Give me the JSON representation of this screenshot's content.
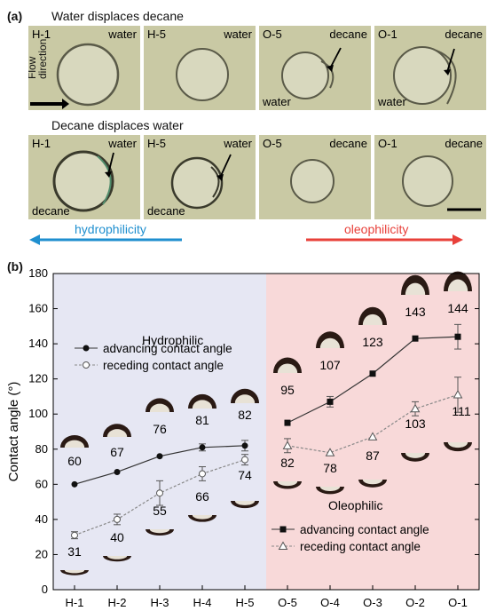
{
  "panel_a": {
    "label": "(a)",
    "row1_title": "Water displaces decane",
    "row2_title": "Decane displaces water",
    "flow_label": "Flow direction",
    "row1": [
      {
        "id": "H-1",
        "fluid": "water"
      },
      {
        "id": "H-5",
        "fluid": "water"
      },
      {
        "id": "O-5",
        "fluid": "decane",
        "fluid2": "water"
      },
      {
        "id": "O-1",
        "fluid": "decane",
        "fluid2": "water"
      }
    ],
    "row2": [
      {
        "id": "H-1",
        "fluid": "water",
        "fluid2": "decane"
      },
      {
        "id": "H-5",
        "fluid": "water",
        "fluid2": "decane"
      },
      {
        "id": "O-5",
        "fluid": "decane"
      },
      {
        "id": "O-1",
        "fluid": "decane"
      }
    ],
    "hydrophilicity_label": "hydrophilicity",
    "oleophilicity_label": "oleophilicity",
    "hydro_color": "#1f8fcf",
    "oleo_color": "#e8403a"
  },
  "panel_b_label": "(b)",
  "chart_data": {
    "type": "line",
    "categories": [
      "H-1",
      "H-2",
      "H-3",
      "H-4",
      "H-5",
      "O-5",
      "O-4",
      "O-3",
      "O-2",
      "O-1"
    ],
    "ylabel": "Contact angle (°)",
    "ylim": [
      0,
      180
    ],
    "yticks": [
      0,
      20,
      40,
      60,
      80,
      100,
      120,
      140,
      160,
      180
    ],
    "region_labels": {
      "left": "Hydrophilic",
      "right": "Oleophilic"
    },
    "region_colors": {
      "left": "#e6e7f3",
      "right": "#f8d9d9",
      "left_text": "#1f8fcf",
      "right_text": "#e8403a"
    },
    "legend_left": [
      "advancing contact angle",
      "receding contact angle"
    ],
    "legend_right": [
      "advancing contact angle",
      "receding contact angle"
    ],
    "series": [
      {
        "name": "advancing contact angle",
        "group": "H",
        "marker": "filled-circle",
        "values": [
          60,
          67,
          76,
          81,
          82,
          null,
          null,
          null,
          null,
          null
        ],
        "errors": [
          0,
          0,
          0,
          2,
          3,
          null,
          null,
          null,
          null,
          null
        ]
      },
      {
        "name": "receding contact angle",
        "group": "H",
        "marker": "open-circle",
        "values": [
          31,
          40,
          55,
          66,
          74,
          null,
          null,
          null,
          null,
          null
        ],
        "errors": [
          2,
          3,
          7,
          4,
          3,
          null,
          null,
          null,
          null,
          null
        ]
      },
      {
        "name": "advancing contact angle",
        "group": "O",
        "marker": "filled-square",
        "values": [
          null,
          null,
          null,
          null,
          null,
          95,
          107,
          123,
          143,
          144
        ],
        "errors": [
          null,
          null,
          null,
          null,
          null,
          0,
          3,
          0,
          0,
          7
        ]
      },
      {
        "name": "receding contact angle",
        "group": "O",
        "marker": "open-triangle",
        "values": [
          null,
          null,
          null,
          null,
          null,
          82,
          78,
          87,
          103,
          111
        ],
        "errors": [
          null,
          null,
          null,
          null,
          null,
          4,
          0,
          0,
          4,
          10
        ]
      }
    ],
    "annotations_advancing": [
      "60",
      "67",
      "76",
      "81",
      "82",
      "95",
      "107",
      "123",
      "143",
      "144"
    ],
    "annotations_receding": [
      "31",
      "40",
      "55",
      "66",
      "74",
      "82",
      "78",
      "87",
      "103",
      "111"
    ]
  }
}
